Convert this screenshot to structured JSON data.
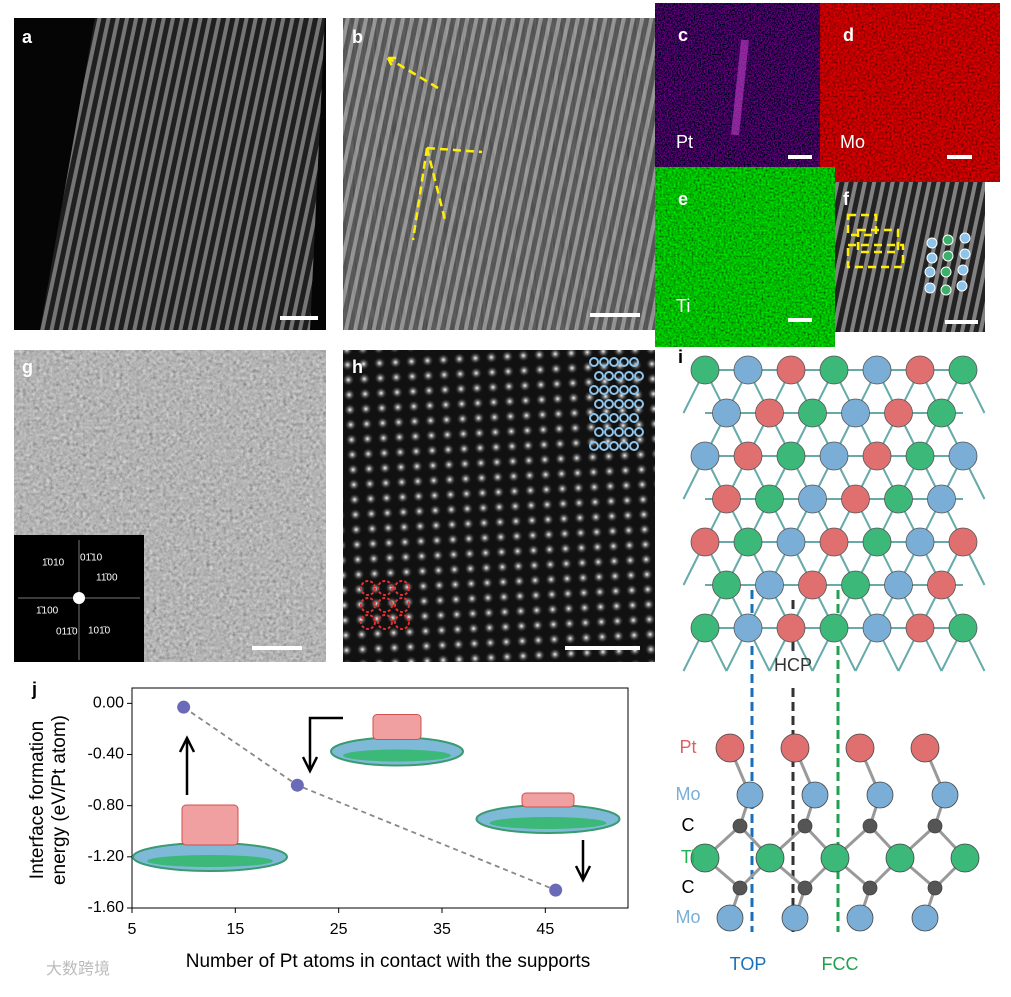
{
  "panel_labels": [
    "a",
    "b",
    "c",
    "d",
    "e",
    "f",
    "g",
    "h",
    "i",
    "j"
  ],
  "element_maps": [
    "Pt",
    "Mo",
    "Ti"
  ],
  "fft_labels": [
    "1̄010",
    "01̄10",
    "11̄00",
    "1̄100",
    "011̄0",
    "101̄0"
  ],
  "structure": {
    "sites": [
      "HCP",
      "TOP",
      "FCC"
    ],
    "layers": [
      "Pt",
      "Mo",
      "C",
      "Ti",
      "C",
      "Mo"
    ]
  },
  "watermark": "大数跨境",
  "chart_data": {
    "type": "scatter",
    "x_label": "Number of Pt atoms in contact with the supports",
    "y_label": [
      "Interface formation",
      "energy (eV/Pt atom)"
    ],
    "x": [
      10,
      21,
      46
    ],
    "values": [
      -0.03,
      -0.64,
      -1.46
    ],
    "color": "#6a6ab8",
    "line_color": "#888888",
    "line_style": "dashed",
    "xlim": [
      5,
      53
    ],
    "ylim": [
      -1.6,
      0.12
    ],
    "xticks": [
      5,
      15,
      25,
      35,
      45
    ],
    "yticks": [
      {
        "value": 0,
        "label": "0.00"
      },
      {
        "value": -0.4,
        "label": "-0.40"
      },
      {
        "value": -0.8,
        "label": "-0.80"
      },
      {
        "value": -1.2,
        "label": "-1.20"
      },
      {
        "value": -1.6,
        "label": "-1.60"
      }
    ]
  }
}
